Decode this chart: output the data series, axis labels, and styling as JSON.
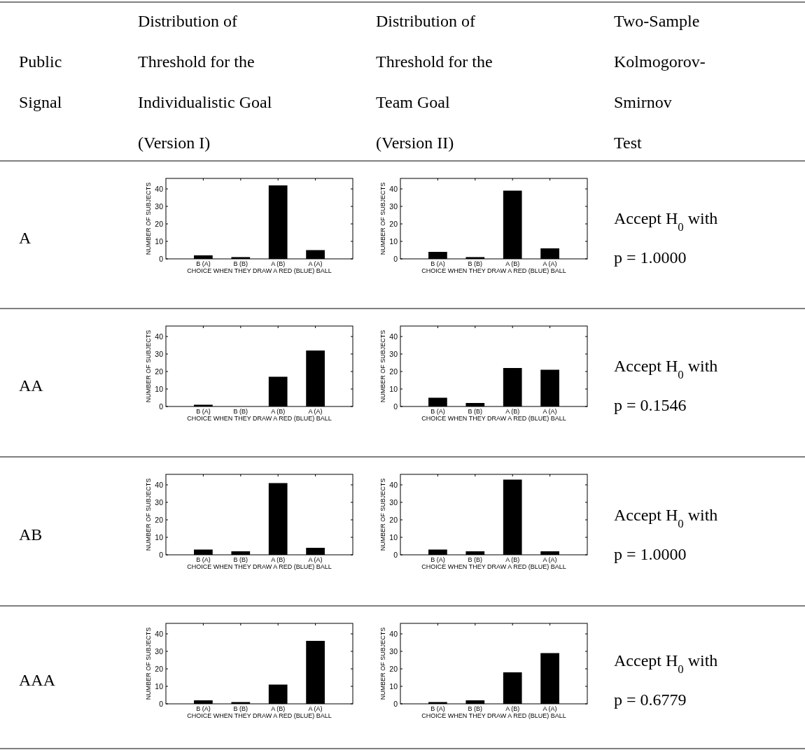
{
  "chart_data": [
    {
      "type": "other",
      "annotations": [
        "Public\nSignal",
        "Distribution of\nThreshold for the\nIndividualistic Goal\n(Version I)",
        "Distribution of\nThreshold for the\nTeam Goal\n(Version II)",
        "Two-Sample\nKolmogorov-\nSmirnov\nTest"
      ]
    },
    {
      "type": "other",
      "annotations": [
        "A"
      ]
    },
    {
      "type": "bar",
      "categories": [
        "B (A)",
        "B (B)",
        "A (B)",
        "A (A)"
      ],
      "values": [
        2,
        1,
        42,
        5
      ],
      "color": "#000000",
      "ylim": [
        0,
        46
      ],
      "yticks": [
        0,
        10,
        20,
        30,
        40
      ],
      "xlabel": "CHOICE WHEN THEY DRAW A RED (BLUE) BALL",
      "ylabel": "NUMBER OF SUBJECTS"
    },
    {
      "type": "bar",
      "categories": [
        "B (A)",
        "B (B)",
        "A (B)",
        "A (A)"
      ],
      "values": [
        4,
        1,
        39,
        6
      ],
      "color": "#000000",
      "ylim": [
        0,
        46
      ],
      "yticks": [
        0,
        10,
        20,
        30,
        40
      ],
      "xlabel": "CHOICE WHEN THEY DRAW A RED (BLUE) BALL",
      "ylabel": "NUMBER OF SUBJECTS"
    },
    {
      "type": "other",
      "annotations": [
        "Accept H$_{0}$ with",
        "p = 1.0000"
      ]
    },
    {
      "type": "other",
      "annotations": [
        "AA"
      ]
    },
    {
      "type": "bar",
      "categories": [
        "B (A)",
        "B (B)",
        "A (B)",
        "A (A)"
      ],
      "values": [
        1,
        0,
        17,
        32
      ],
      "color": "#000000",
      "ylim": [
        0,
        46
      ],
      "yticks": [
        0,
        10,
        20,
        30,
        40
      ],
      "xlabel": "CHOICE WHEN THEY DRAW A RED (BLUE) BALL",
      "ylabel": "NUMBER OF SUBJECTS"
    },
    {
      "type": "bar",
      "categories": [
        "B (A)",
        "B (B)",
        "A (B)",
        "A (A)"
      ],
      "values": [
        5,
        2,
        22,
        21
      ],
      "color": "#000000",
      "ylim": [
        0,
        46
      ],
      "yticks": [
        0,
        10,
        20,
        30,
        40
      ],
      "xlabel": "CHOICE WHEN THEY DRAW A RED (BLUE) BALL",
      "ylabel": "NUMBER OF SUBJECTS"
    },
    {
      "type": "other",
      "annotations": [
        "Accept H$_{0}$ with",
        "p = 0.1546"
      ]
    },
    {
      "type": "other",
      "annotations": [
        "AB"
      ]
    },
    {
      "type": "bar",
      "categories": [
        "B (A)",
        "B (B)",
        "A (B)",
        "A (A)"
      ],
      "values": [
        3,
        2,
        41,
        4
      ],
      "color": "#000000",
      "ylim": [
        0,
        46
      ],
      "yticks": [
        0,
        10,
        20,
        30,
        40
      ],
      "xlabel": "CHOICE WHEN THEY DRAW A RED (BLUE) BALL",
      "ylabel": "NUMBER OF SUBJECTS"
    },
    {
      "type": "bar",
      "categories": [
        "B (A)",
        "B (B)",
        "A (B)",
        "A (A)"
      ],
      "values": [
        3,
        2,
        43,
        2
      ],
      "color": "#000000",
      "ylim": [
        0,
        46
      ],
      "yticks": [
        0,
        10,
        20,
        30,
        40
      ],
      "xlabel": "CHOICE WHEN THEY DRAW A RED (BLUE) BALL",
      "ylabel": "NUMBER OF SUBJECTS"
    },
    {
      "type": "other",
      "annotations": [
        "Accept H$_{0}$ with",
        "p = 1.0000"
      ]
    },
    {
      "type": "other",
      "annotations": [
        "AAA"
      ]
    },
    {
      "type": "bar",
      "categories": [
        "B (A)",
        "B (B)",
        "A (B)",
        "A (A)"
      ],
      "values": [
        2,
        1,
        11,
        36
      ],
      "color": "#000000",
      "ylim": [
        0,
        46
      ],
      "yticks": [
        0,
        10,
        20,
        30,
        40
      ],
      "xlabel": "CHOICE WHEN THEY DRAW A RED (BLUE) BALL",
      "ylabel": "NUMBER OF SUBJECTS"
    },
    {
      "type": "bar",
      "categories": [
        "B (A)",
        "B (B)",
        "A (B)",
        "A (A)"
      ],
      "values": [
        1,
        2,
        18,
        29
      ],
      "color": "#000000",
      "ylim": [
        0,
        46
      ],
      "yticks": [
        0,
        10,
        20,
        30,
        40
      ],
      "xlabel": "CHOICE WHEN THEY DRAW A RED (BLUE) BALL",
      "ylabel": "NUMBER OF SUBJECTS"
    },
    {
      "type": "other",
      "annotations": [
        "Accept H$_{0}$ with",
        "p = 0.6779"
      ]
    }
  ]
}
